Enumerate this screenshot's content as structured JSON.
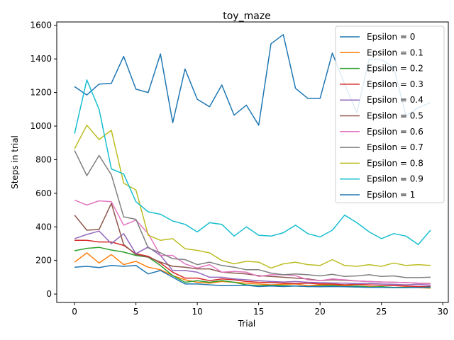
{
  "chart_data": {
    "type": "line",
    "title": "toy_maze",
    "xlabel": "Trial",
    "ylabel": "Steps in trial",
    "xlim": [
      -1.45,
      30.45
    ],
    "ylim": [
      -50,
      1620
    ],
    "xticks": [
      0,
      5,
      10,
      15,
      20,
      25,
      30
    ],
    "yticks": [
      0,
      200,
      400,
      600,
      800,
      1000,
      1200,
      1400,
      1600
    ],
    "grid": false,
    "legend_position": "top-right",
    "x": [
      0,
      1,
      2,
      3,
      4,
      5,
      6,
      7,
      8,
      9,
      10,
      11,
      12,
      13,
      14,
      15,
      16,
      17,
      18,
      19,
      20,
      21,
      22,
      23,
      24,
      25,
      26,
      27,
      28,
      29
    ],
    "series": [
      {
        "name": "Epsilon = 0",
        "color": "#1f77b4",
        "values": [
          1235,
          1185,
          1250,
          1255,
          1415,
          1220,
          1200,
          1430,
          1020,
          1340,
          1160,
          1115,
          1245,
          1065,
          1125,
          1005,
          1490,
          1545,
          1225,
          1165,
          1165,
          1435,
          1250,
          1080,
          1400,
          1395,
          1350,
          1060,
          1110,
          1140
        ]
      },
      {
        "name": "Epsilon = 0.1",
        "color": "#ff7f0e",
        "values": [
          190,
          245,
          185,
          235,
          175,
          195,
          160,
          145,
          110,
          85,
          70,
          65,
          75,
          70,
          65,
          60,
          55,
          58,
          60,
          50,
          55,
          55,
          50,
          48,
          45,
          42,
          40,
          42,
          38,
          35
        ]
      },
      {
        "name": "Epsilon = 0.2",
        "color": "#2ca02c",
        "values": [
          258,
          272,
          278,
          262,
          250,
          230,
          220,
          170,
          110,
          70,
          80,
          70,
          80,
          70,
          55,
          50,
          52,
          50,
          48,
          45,
          48,
          50,
          45,
          48,
          42,
          44,
          40,
          40,
          42,
          38
        ]
      },
      {
        "name": "Epsilon = 0.3",
        "color": "#d62728",
        "values": [
          320,
          320,
          310,
          310,
          290,
          240,
          225,
          185,
          130,
          95,
          95,
          80,
          90,
          85,
          75,
          70,
          68,
          65,
          62,
          65,
          60,
          60,
          55,
          58,
          55,
          52,
          50,
          48,
          45,
          45
        ]
      },
      {
        "name": "Epsilon = 0.4",
        "color": "#9467bd",
        "values": [
          330,
          355,
          375,
          300,
          360,
          240,
          280,
          230,
          140,
          140,
          130,
          100,
          100,
          90,
          85,
          80,
          75,
          72,
          75,
          70,
          68,
          66,
          65,
          62,
          64,
          60,
          58,
          55,
          58,
          52
        ]
      },
      {
        "name": "Epsilon = 0.5",
        "color": "#8c564b",
        "values": [
          470,
          380,
          385,
          540,
          295,
          235,
          220,
          190,
          165,
          160,
          150,
          150,
          130,
          125,
          120,
          110,
          105,
          100,
          95,
          90,
          80,
          85,
          82,
          78,
          75,
          72,
          70,
          68,
          65,
          62
        ]
      },
      {
        "name": "Epsilon = 0.6",
        "color": "#e377c2",
        "values": [
          560,
          530,
          555,
          550,
          410,
          440,
          360,
          230,
          230,
          180,
          155,
          175,
          130,
          135,
          130,
          105,
          115,
          115,
          110,
          85,
          80,
          90,
          85,
          78,
          75,
          72,
          70,
          68,
          65,
          60
        ]
      },
      {
        "name": "Epsilon = 0.7",
        "color": "#7f7f7f",
        "values": [
          855,
          705,
          825,
          710,
          460,
          445,
          275,
          245,
          210,
          205,
          175,
          190,
          170,
          160,
          145,
          145,
          125,
          115,
          120,
          115,
          108,
          118,
          105,
          108,
          115,
          105,
          108,
          98,
          98,
          100
        ]
      },
      {
        "name": "Epsilon = 0.8",
        "color": "#bcbd22",
        "values": [
          865,
          1005,
          920,
          975,
          660,
          620,
          350,
          320,
          330,
          270,
          260,
          245,
          200,
          180,
          195,
          190,
          155,
          180,
          190,
          175,
          170,
          205,
          170,
          165,
          175,
          165,
          185,
          170,
          175,
          170
        ]
      },
      {
        "name": "Epsilon = 0.9",
        "color": "#17becf",
        "values": [
          955,
          1275,
          1100,
          745,
          715,
          550,
          490,
          475,
          435,
          415,
          370,
          425,
          415,
          345,
          400,
          350,
          345,
          365,
          410,
          360,
          340,
          380,
          470,
          425,
          370,
          330,
          360,
          345,
          295,
          380
        ]
      },
      {
        "name": "Epsilon = 1",
        "color": "#1f77b4",
        "values": [
          160,
          165,
          158,
          170,
          165,
          170,
          120,
          140,
          100,
          60,
          60,
          55,
          50,
          50,
          52,
          45,
          48,
          45,
          48,
          45,
          44,
          45,
          44,
          42,
          40,
          40,
          38,
          38,
          40,
          42
        ]
      }
    ]
  }
}
